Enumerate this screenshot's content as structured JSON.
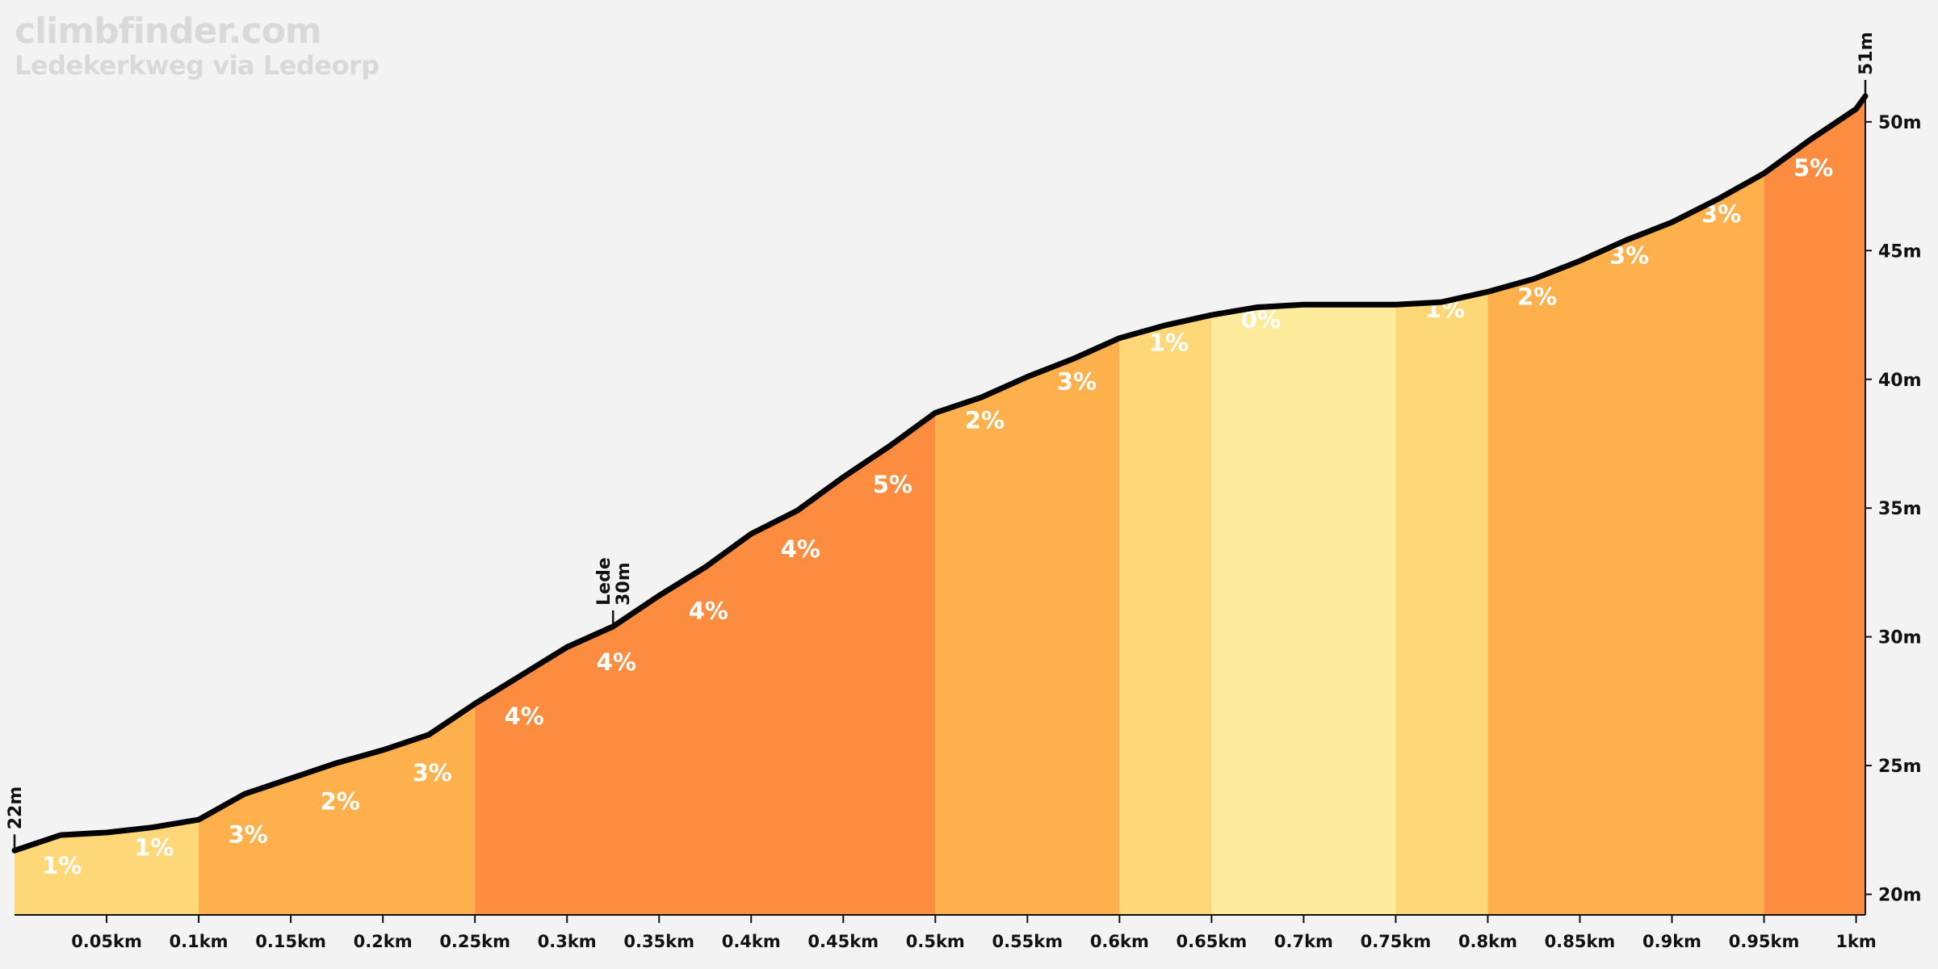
{
  "header": {
    "site": "climbfinder.com",
    "climb_name": "Ledekerkweg via Ledeorp"
  },
  "colors": {
    "background": "#f3f3f3",
    "grade_0": "#fdeb9c",
    "grade_1": "#fed878",
    "grade_2_3": "#fdb04c",
    "grade_4_5": "#fc8c3f",
    "profile_line": "#000000",
    "label_text": "#ffffff",
    "axis": "#111111"
  },
  "chart_data": {
    "type": "area",
    "title": "",
    "xlabel": "",
    "ylabel": "",
    "x_unit": "km",
    "y_unit": "m",
    "xlim": [
      0,
      1.0
    ],
    "ylim": [
      19.2,
      51
    ],
    "grid": false,
    "profile": [
      {
        "x": 0.0,
        "y": 21.7
      },
      {
        "x": 0.025,
        "y": 22.3
      },
      {
        "x": 0.05,
        "y": 22.4
      },
      {
        "x": 0.075,
        "y": 22.6
      },
      {
        "x": 0.1,
        "y": 22.9
      },
      {
        "x": 0.125,
        "y": 23.9
      },
      {
        "x": 0.15,
        "y": 24.5
      },
      {
        "x": 0.175,
        "y": 25.1
      },
      {
        "x": 0.2,
        "y": 25.6
      },
      {
        "x": 0.225,
        "y": 26.2
      },
      {
        "x": 0.25,
        "y": 27.4
      },
      {
        "x": 0.275,
        "y": 28.5
      },
      {
        "x": 0.3,
        "y": 29.6
      },
      {
        "x": 0.325,
        "y": 30.4
      },
      {
        "x": 0.35,
        "y": 31.6
      },
      {
        "x": 0.375,
        "y": 32.7
      },
      {
        "x": 0.4,
        "y": 34.0
      },
      {
        "x": 0.425,
        "y": 34.9
      },
      {
        "x": 0.45,
        "y": 36.2
      },
      {
        "x": 0.475,
        "y": 37.4
      },
      {
        "x": 0.5,
        "y": 38.7
      },
      {
        "x": 0.525,
        "y": 39.3
      },
      {
        "x": 0.55,
        "y": 40.1
      },
      {
        "x": 0.575,
        "y": 40.8
      },
      {
        "x": 0.6,
        "y": 41.6
      },
      {
        "x": 0.625,
        "y": 42.1
      },
      {
        "x": 0.65,
        "y": 42.5
      },
      {
        "x": 0.675,
        "y": 42.8
      },
      {
        "x": 0.7,
        "y": 42.9
      },
      {
        "x": 0.725,
        "y": 42.9
      },
      {
        "x": 0.75,
        "y": 42.9
      },
      {
        "x": 0.775,
        "y": 43.0
      },
      {
        "x": 0.8,
        "y": 43.4
      },
      {
        "x": 0.825,
        "y": 43.9
      },
      {
        "x": 0.85,
        "y": 44.6
      },
      {
        "x": 0.875,
        "y": 45.4
      },
      {
        "x": 0.9,
        "y": 46.1
      },
      {
        "x": 0.925,
        "y": 47.0
      },
      {
        "x": 0.95,
        "y": 48.0
      },
      {
        "x": 0.975,
        "y": 49.3
      },
      {
        "x": 1.0,
        "y": 50.5
      },
      {
        "x": 1.005,
        "y": 51.0
      }
    ],
    "segments": [
      {
        "x0": 0.0,
        "x1": 0.1,
        "grade": 1,
        "color": "#fed878",
        "labels": [
          {
            "text": "1%",
            "x": 0.015,
            "y": 20.8
          },
          {
            "text": "1%",
            "x": 0.065,
            "y": 21.5
          }
        ]
      },
      {
        "x0": 0.1,
        "x1": 0.25,
        "grade": 3,
        "color": "#fdb04c",
        "labels": [
          {
            "text": "3%",
            "x": 0.116,
            "y": 22.0
          },
          {
            "text": "2%",
            "x": 0.166,
            "y": 23.3
          },
          {
            "text": "3%",
            "x": 0.216,
            "y": 24.4
          }
        ]
      },
      {
        "x0": 0.25,
        "x1": 0.5,
        "grade": 4,
        "color": "#fc8c3f",
        "labels": [
          {
            "text": "4%",
            "x": 0.266,
            "y": 26.6
          },
          {
            "text": "4%",
            "x": 0.316,
            "y": 28.7
          },
          {
            "text": "4%",
            "x": 0.366,
            "y": 30.7
          },
          {
            "text": "4%",
            "x": 0.416,
            "y": 33.1
          },
          {
            "text": "5%",
            "x": 0.466,
            "y": 35.6
          }
        ]
      },
      {
        "x0": 0.5,
        "x1": 0.6,
        "grade": 2,
        "color": "#fdb04c",
        "labels": [
          {
            "text": "2%",
            "x": 0.516,
            "y": 38.1
          },
          {
            "text": "3%",
            "x": 0.566,
            "y": 39.6
          }
        ]
      },
      {
        "x0": 0.6,
        "x1": 0.65,
        "grade": 1,
        "color": "#fed878",
        "labels": [
          {
            "text": "1%",
            "x": 0.616,
            "y": 41.1
          }
        ]
      },
      {
        "x0": 0.65,
        "x1": 0.75,
        "grade": 0,
        "color": "#fdeb9c",
        "labels": [
          {
            "text": "0%",
            "x": 0.666,
            "y": 42.0
          }
        ]
      },
      {
        "x0": 0.75,
        "x1": 0.8,
        "grade": 1,
        "color": "#fed878",
        "labels": [
          {
            "text": "1%",
            "x": 0.766,
            "y": 42.4
          }
        ]
      },
      {
        "x0": 0.8,
        "x1": 0.95,
        "grade": 3,
        "color": "#fdb04c",
        "labels": [
          {
            "text": "2%",
            "x": 0.816,
            "y": 42.9
          },
          {
            "text": "3%",
            "x": 0.866,
            "y": 44.5
          },
          {
            "text": "3%",
            "x": 0.916,
            "y": 46.1
          }
        ]
      },
      {
        "x0": 0.95,
        "x1": 1.005,
        "grade": 5,
        "color": "#fc8c3f",
        "labels": [
          {
            "text": "5%",
            "x": 0.966,
            "y": 47.9
          }
        ]
      }
    ],
    "x_ticks": [
      {
        "value": 0.05,
        "label": "0.05km"
      },
      {
        "value": 0.1,
        "label": "0.1km"
      },
      {
        "value": 0.15,
        "label": "0.15km"
      },
      {
        "value": 0.2,
        "label": "0.2km"
      },
      {
        "value": 0.25,
        "label": "0.25km"
      },
      {
        "value": 0.3,
        "label": "0.3km"
      },
      {
        "value": 0.35,
        "label": "0.35km"
      },
      {
        "value": 0.4,
        "label": "0.4km"
      },
      {
        "value": 0.45,
        "label": "0.45km"
      },
      {
        "value": 0.5,
        "label": "0.5km"
      },
      {
        "value": 0.55,
        "label": "0.55km"
      },
      {
        "value": 0.6,
        "label": "0.6km"
      },
      {
        "value": 0.65,
        "label": "0.65km"
      },
      {
        "value": 0.7,
        "label": "0.7km"
      },
      {
        "value": 0.75,
        "label": "0.75km"
      },
      {
        "value": 0.8,
        "label": "0.8km"
      },
      {
        "value": 0.85,
        "label": "0.85km"
      },
      {
        "value": 0.9,
        "label": "0.9km"
      },
      {
        "value": 0.95,
        "label": "0.95km"
      },
      {
        "value": 1.0,
        "label": "1km"
      }
    ],
    "y_ticks": [
      {
        "value": 20,
        "label": "20m"
      },
      {
        "value": 25,
        "label": "25m"
      },
      {
        "value": 30,
        "label": "30m"
      },
      {
        "value": 35,
        "label": "35m"
      },
      {
        "value": 40,
        "label": "40m"
      },
      {
        "value": 45,
        "label": "45m"
      },
      {
        "value": 50,
        "label": "50m"
      }
    ],
    "markers": [
      {
        "x": 0.0,
        "y": 21.7,
        "lines": [
          "22m"
        ]
      },
      {
        "x": 0.325,
        "y": 30.4,
        "lines": [
          "Lede",
          "30m"
        ]
      },
      {
        "x": 1.005,
        "y": 51.0,
        "lines": [
          "51m"
        ]
      }
    ]
  }
}
